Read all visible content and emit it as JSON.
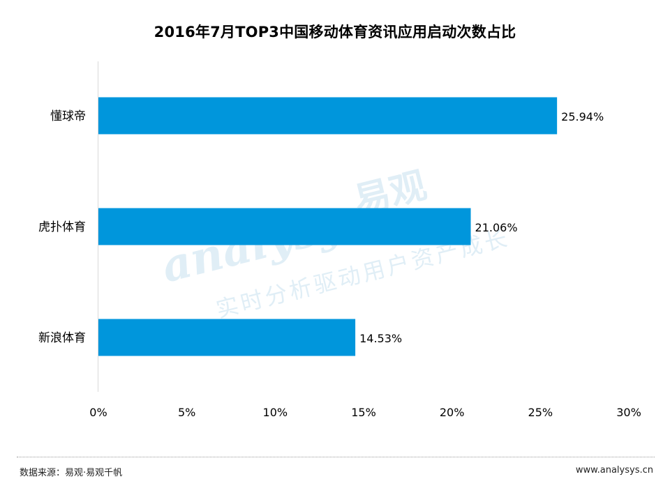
{
  "chart_data": {
    "type": "bar",
    "orientation": "horizontal",
    "title": "2016年7月TOP3中国移动体育资讯应用启动次数占比",
    "categories": [
      "懂球帝",
      "虎扑体育",
      "新浪体育"
    ],
    "values": [
      25.94,
      21.06,
      14.53
    ],
    "value_labels": [
      "25.94%",
      "21.06%",
      "14.53%"
    ],
    "xlim": [
      0,
      30
    ],
    "xticks": [
      0,
      5,
      10,
      15,
      20,
      25,
      30
    ],
    "xtick_labels": [
      "0%",
      "5%",
      "10%",
      "15%",
      "20%",
      "25%",
      "30%"
    ],
    "xlabel": "",
    "ylabel": "",
    "grid": false,
    "legend": "none",
    "bar_color": "#0096DC"
  },
  "footer": {
    "source": "数据来源：易观·易观千帆",
    "url": "www.analysys.cn"
  },
  "watermark": {
    "logo": "analysys",
    "cn": "易观",
    "slogan": "实时分析驱动用户资产成长"
  }
}
